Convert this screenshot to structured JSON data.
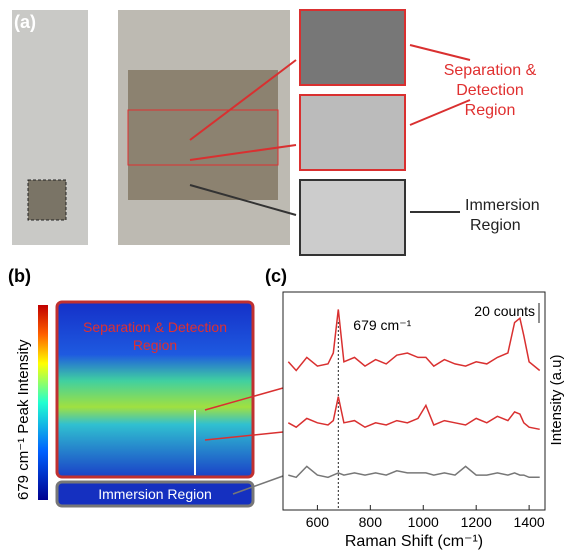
{
  "panel_a": {
    "label": "(a)",
    "annotations": [
      "Separation &",
      "Detection",
      "Region",
      "Immersion",
      "Region"
    ]
  },
  "panel_b": {
    "label": "(b)",
    "colorbar_label": "679 cm⁻¹  Peak Intensity",
    "regions": [
      "Separation & Detection",
      "Region",
      "Immersion Region"
    ]
  },
  "chart_data": {
    "type": "line",
    "label": "(c)",
    "xlabel": "Raman Shift (cm⁻¹)",
    "ylabel": "Intensity (a.u)",
    "scale_bar": "20 counts",
    "annotations": [
      {
        "text": "679 cm⁻¹",
        "x": 679
      }
    ],
    "x": [
      490,
      520,
      560,
      600,
      640,
      660,
      679,
      700,
      740,
      780,
      820,
      860,
      900,
      940,
      980,
      1010,
      1040,
      1080,
      1120,
      1160,
      1200,
      1240,
      1280,
      1320,
      1345,
      1365,
      1380,
      1400,
      1440
    ],
    "series": [
      {
        "color": "#d93030",
        "values": [
          68,
          64,
          70,
          66,
          67,
          72,
          92,
          68,
          70,
          66,
          69,
          67,
          71,
          72,
          70,
          70,
          66,
          69,
          67,
          66,
          68,
          67,
          70,
          72,
          86,
          88,
          80,
          68,
          64
        ]
      },
      {
        "color": "#d93030",
        "values": [
          40,
          38,
          42,
          40,
          39,
          41,
          52,
          40,
          41,
          38,
          40,
          39,
          41,
          40,
          42,
          48,
          39,
          41,
          40,
          39,
          42,
          40,
          43,
          41,
          45,
          44,
          40,
          38,
          37
        ]
      },
      {
        "color": "#777777",
        "values": [
          16,
          15,
          20,
          16,
          15,
          16,
          17,
          16,
          17,
          16,
          17,
          16,
          18,
          17,
          17,
          17,
          16,
          17,
          16,
          20,
          16,
          16,
          17,
          16,
          17,
          16,
          16,
          15,
          15
        ]
      }
    ],
    "xlim": [
      470,
      1460
    ],
    "ylim": [
      0,
      100
    ],
    "xticks": [
      600,
      800,
      1000,
      1200,
      1400
    ]
  }
}
